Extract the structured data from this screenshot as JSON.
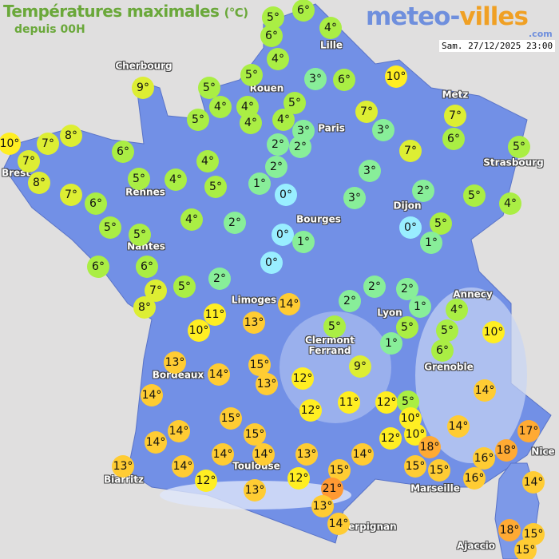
{
  "header": {
    "title": "Températures maximales",
    "unit": "(°C)",
    "subtitle": "depuis 00H"
  },
  "logo": {
    "main": "meteo-",
    "accent": "villes",
    "suffix": ".com"
  },
  "timestamp": "Sam. 27/12/2025 23:00",
  "colors": {
    "land": "#7290e6",
    "sea": "#e0dfdf",
    "cold_0": "#99eeff",
    "cool_1_3": "#88ee99",
    "mild_4_6": "#aaee44",
    "mild_7_9": "#ddee33",
    "warm_10_12": "#ffee22",
    "warm_13_16": "#ffcc33",
    "hot_17_18": "#ffaa33",
    "hot_21": "#ff9933",
    "title": "#6aa83a"
  },
  "cities": [
    "Cherbourg",
    "Lille",
    "Rouen",
    "Paris",
    "Metz",
    "Strasbourg",
    "Brest",
    "Rennes",
    "Nantes",
    "Bourges",
    "Dijon",
    "Limoges",
    "Annecy",
    "Lyon",
    "Clermont Ferrand",
    "Grenoble",
    "Bordeaux",
    "Toulouse",
    "Biarritz",
    "Marseille",
    "Nice",
    "Perpignan",
    "Ajaccio"
  ],
  "temperatures": [
    5,
    6,
    6,
    4,
    4,
    5,
    5,
    4,
    5,
    4,
    4,
    5,
    4,
    3,
    6,
    10,
    3,
    2,
    2,
    7,
    3,
    7,
    7,
    6,
    5,
    2,
    1,
    0,
    3,
    3,
    2,
    5,
    4,
    0,
    5,
    1,
    0,
    1,
    0,
    2,
    4,
    5,
    4,
    4,
    5,
    6,
    9,
    8,
    7,
    7,
    10,
    8,
    7,
    6,
    5,
    5,
    6,
    6,
    7,
    8,
    5,
    2,
    2,
    2,
    2,
    1,
    5,
    5,
    1,
    9,
    4,
    5,
    6,
    10,
    14,
    13,
    11,
    10,
    13,
    14,
    15,
    13,
    12,
    12,
    11,
    12,
    5,
    10,
    10,
    12,
    14,
    14,
    17,
    18,
    16,
    16,
    18,
    15,
    15,
    14,
    15,
    13,
    12,
    21,
    13,
    14,
    14,
    18,
    15,
    15,
    14,
    14,
    14,
    13,
    14,
    12,
    14,
    15,
    15,
    14,
    13,
    13
  ]
}
